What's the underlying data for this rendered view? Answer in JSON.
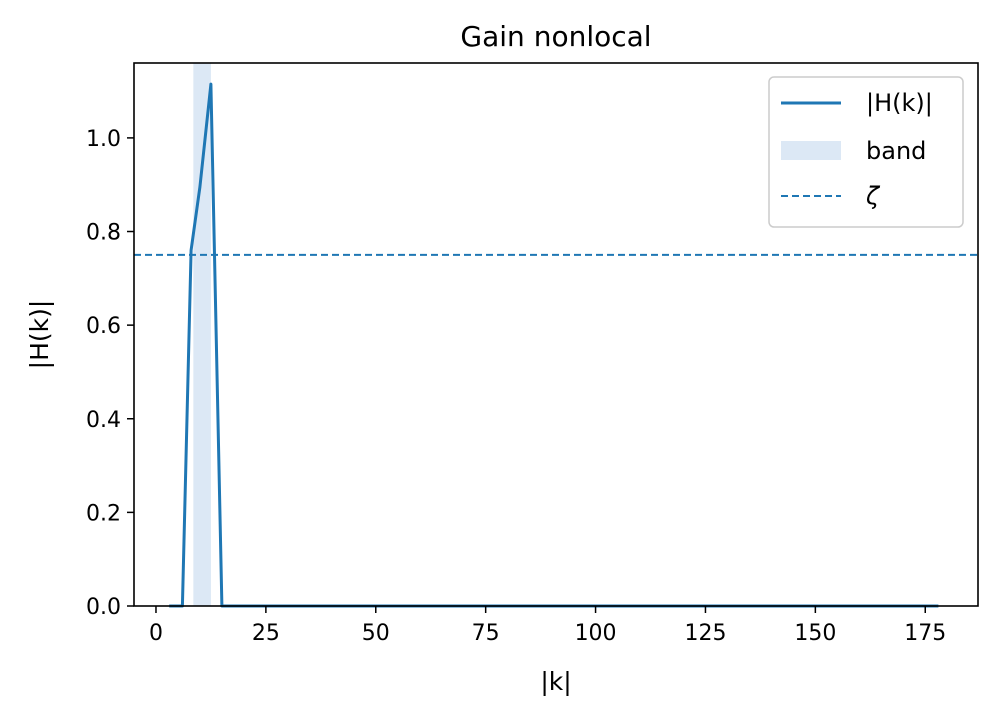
{
  "chart_data": {
    "type": "line",
    "title": "Gain nonlocal",
    "xlabel": "|k|",
    "ylabel": "|H(k)|",
    "xlim": [
      -5,
      187
    ],
    "ylim": [
      0.0,
      1.16
    ],
    "x_ticks": [
      0,
      25,
      50,
      75,
      100,
      125,
      150,
      175
    ],
    "y_ticks": [
      0.0,
      0.2,
      0.4,
      0.6,
      0.8,
      1.0
    ],
    "x_tick_labels": [
      "0",
      "25",
      "50",
      "75",
      "100",
      "125",
      "150",
      "175"
    ],
    "y_tick_labels": [
      "0.0",
      "0.2",
      "0.4",
      "0.6",
      "0.8",
      "1.0"
    ],
    "grid": false,
    "legend_position": "top-right",
    "series": [
      {
        "name": "|H(k)|",
        "color": "#1f77b4",
        "style": "solid",
        "x": [
          3,
          6,
          8,
          10,
          12.5,
          15,
          178
        ],
        "y": [
          0.0,
          0.0,
          0.76,
          0.895,
          1.115,
          0.0,
          0.0
        ]
      }
    ],
    "band": {
      "name": "band",
      "x_range": [
        8.5,
        12.5
      ],
      "color": "#dce8f5"
    },
    "threshold": {
      "name": "ζ",
      "y": 0.75,
      "color": "#1f77b4",
      "style": "dashed"
    }
  }
}
